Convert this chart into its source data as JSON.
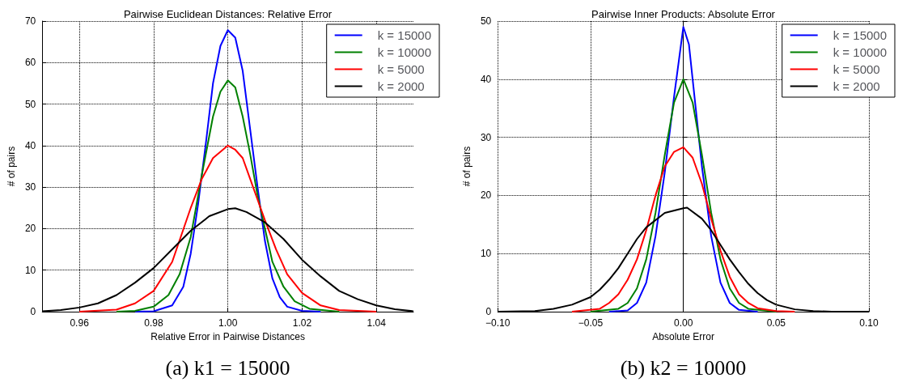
{
  "chart_data": [
    {
      "type": "line",
      "title": "Pairwise Euclidean Distances: Relative Error",
      "xlabel": "Relative Error in Pairwise Distances",
      "ylabel": "# of pairs",
      "xlim": [
        0.95,
        1.05
      ],
      "xticks": [
        {
          "value": 0.96,
          "label": "0.96"
        },
        {
          "value": 0.98,
          "label": "0.98"
        },
        {
          "value": 1.0,
          "label": "1.00"
        },
        {
          "value": 1.02,
          "label": "1.02"
        },
        {
          "value": 1.04,
          "label": "1.04"
        }
      ],
      "ylim": [
        0,
        70
      ],
      "yticks": [
        0,
        10,
        20,
        30,
        40,
        50,
        60,
        70
      ],
      "grid": true,
      "legend": "top right",
      "marker": "none",
      "line_style": "solid",
      "annotations": [
        "(a) k1 = 15000"
      ],
      "series": [
        {
          "name": "k = 15000",
          "color": "#0000ff",
          "x": [
            0.975,
            0.98,
            0.985,
            0.988,
            0.99,
            0.992,
            0.994,
            0.996,
            0.998,
            1.0,
            1.002,
            1.004,
            1.006,
            1.008,
            1.01,
            1.012,
            1.014,
            1.016,
            1.02,
            1.025
          ],
          "values": [
            0,
            0.1,
            1.5,
            6,
            14,
            26,
            40,
            55,
            64,
            67.8,
            66,
            58,
            44,
            30,
            17,
            8,
            3.5,
            1.2,
            0.2,
            0
          ]
        },
        {
          "name": "k = 10000",
          "color": "#008000",
          "x": [
            0.97,
            0.975,
            0.98,
            0.984,
            0.987,
            0.99,
            0.993,
            0.996,
            0.998,
            1.0,
            1.002,
            1.004,
            1.006,
            1.008,
            1.01,
            1.012,
            1.015,
            1.018,
            1.022,
            1.03
          ],
          "values": [
            0,
            0.2,
            1.2,
            4,
            9,
            18,
            33,
            47,
            53,
            55.7,
            54,
            47,
            38,
            28,
            20,
            12,
            6,
            2.5,
            0.7,
            0
          ]
        },
        {
          "name": "k = 5000",
          "color": "#ff0000",
          "x": [
            0.96,
            0.97,
            0.975,
            0.98,
            0.985,
            0.99,
            0.993,
            0.996,
            1.0,
            1.002,
            1.004,
            1.006,
            1.008,
            1.01,
            1.013,
            1.016,
            1.02,
            1.025,
            1.03,
            1.04
          ],
          "values": [
            0,
            0.5,
            2,
            5,
            12,
            25,
            32,
            37,
            40,
            39,
            37,
            32,
            27,
            22,
            15,
            9,
            4.5,
            1.5,
            0.4,
            0
          ]
        },
        {
          "name": "k = 2000",
          "color": "#000000",
          "x": [
            0.95,
            0.955,
            0.96,
            0.965,
            0.97,
            0.975,
            0.98,
            0.985,
            0.99,
            0.995,
            1.0,
            1.002,
            1.005,
            1.01,
            1.015,
            1.02,
            1.025,
            1.03,
            1.035,
            1.04,
            1.045,
            1.05
          ],
          "values": [
            0.1,
            0.4,
            1,
            2,
            4,
            7,
            10.5,
            15,
            19.5,
            23,
            24.7,
            24.9,
            24,
            21.5,
            17.5,
            12.5,
            8.5,
            5,
            3,
            1.5,
            0.6,
            0.1
          ]
        }
      ]
    },
    {
      "type": "line",
      "title": "Pairwise Inner Products: Absolute Error",
      "xlabel": "Absolute Error",
      "ylabel": "# of pairs",
      "xlim": [
        -0.1,
        0.1
      ],
      "xticks": [
        {
          "value": -0.1,
          "label": "−0.10"
        },
        {
          "value": -0.05,
          "label": "−0.05"
        },
        {
          "value": 0,
          "label": "0.00"
        },
        {
          "value": 0.05,
          "label": "0.05"
        },
        {
          "value": 0.1,
          "label": "0.10"
        }
      ],
      "ylim": [
        0,
        50
      ],
      "yticks": [
        0,
        10,
        20,
        30,
        40,
        50
      ],
      "grid": true,
      "legend": "top right",
      "marker": "none",
      "line_style": "solid",
      "annotations": [
        "(b) k2 = 10000"
      ],
      "series": [
        {
          "name": "k = 15000",
          "color": "#0000ff",
          "x": [
            -0.04,
            -0.03,
            -0.025,
            -0.02,
            -0.015,
            -0.01,
            -0.005,
            0,
            0.003,
            0.005,
            0.01,
            0.015,
            0.02,
            0.025,
            0.03,
            0.04
          ],
          "values": [
            0,
            0.2,
            1.5,
            5,
            13,
            24,
            37,
            49,
            46,
            40,
            25,
            13,
            5,
            1.5,
            0.3,
            0
          ]
        },
        {
          "name": "k = 10000",
          "color": "#008000",
          "x": [
            -0.05,
            -0.035,
            -0.03,
            -0.025,
            -0.02,
            -0.015,
            -0.01,
            -0.005,
            0,
            0.005,
            0.01,
            0.015,
            0.02,
            0.025,
            0.03,
            0.035,
            0.05
          ],
          "values": [
            0,
            0.5,
            1.5,
            4,
            9,
            17,
            27,
            36,
            40,
            36,
            27,
            17,
            9,
            4,
            1.5,
            0.5,
            0
          ]
        },
        {
          "name": "k = 5000",
          "color": "#ff0000",
          "x": [
            -0.06,
            -0.045,
            -0.04,
            -0.035,
            -0.03,
            -0.025,
            -0.02,
            -0.015,
            -0.01,
            -0.005,
            0,
            0.005,
            0.01,
            0.015,
            0.02,
            0.025,
            0.03,
            0.035,
            0.04,
            0.05,
            0.06
          ],
          "values": [
            0,
            0.5,
            1.5,
            3,
            5.5,
            9,
            14,
            20,
            25,
            27.5,
            28.3,
            26.5,
            22,
            16,
            10.5,
            6,
            3,
            1.5,
            0.6,
            0.1,
            0
          ]
        },
        {
          "name": "k = 2000",
          "color": "#000000",
          "x": [
            -0.1,
            -0.08,
            -0.07,
            -0.06,
            -0.05,
            -0.045,
            -0.04,
            -0.035,
            -0.03,
            -0.025,
            -0.02,
            -0.01,
            0,
            0.002,
            0.01,
            0.015,
            0.02,
            0.025,
            0.03,
            0.035,
            0.04,
            0.045,
            0.05,
            0.06,
            0.07,
            0.08,
            0.1
          ],
          "values": [
            0,
            0.1,
            0.5,
            1.2,
            2.5,
            3.8,
            5.5,
            7.5,
            10,
            12.5,
            14.5,
            17,
            17.8,
            17.9,
            16,
            14,
            11.5,
            9,
            6.8,
            4.8,
            3.2,
            2,
            1.2,
            0.4,
            0.1,
            0,
            0
          ]
        }
      ]
    }
  ]
}
